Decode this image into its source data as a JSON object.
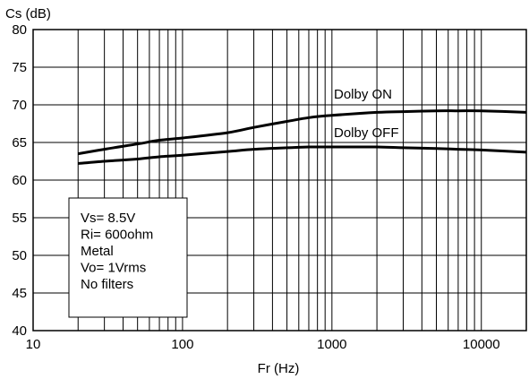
{
  "chart_data": {
    "type": "line",
    "title": "",
    "xlabel": "Fr (Hz)",
    "ylabel": "Cs (dB)",
    "xscale": "log",
    "xlim": [
      10,
      20000
    ],
    "ylim": [
      40,
      80
    ],
    "x_ticks": [
      10,
      100,
      1000,
      10000
    ],
    "x_tick_labels": [
      "10",
      "100",
      "1000",
      "10000"
    ],
    "y_ticks": [
      40,
      45,
      50,
      55,
      60,
      65,
      70,
      75,
      80
    ],
    "y_tick_labels": [
      "40",
      "45",
      "50",
      "55",
      "60",
      "65",
      "70",
      "75",
      "80"
    ],
    "grid": {
      "x_minor_log": true,
      "y_major": true
    },
    "series": [
      {
        "name": "Dolby ON",
        "x": [
          20,
          30,
          50,
          70,
          100,
          200,
          300,
          500,
          700,
          1000,
          2000,
          3000,
          5000,
          7000,
          10000,
          20000
        ],
        "y": [
          63.5,
          64.1,
          64.8,
          65.3,
          65.6,
          66.3,
          67.0,
          67.8,
          68.3,
          68.6,
          69.0,
          69.1,
          69.2,
          69.2,
          69.2,
          69.0
        ]
      },
      {
        "name": "Dolby OFF",
        "x": [
          20,
          30,
          50,
          70,
          100,
          200,
          300,
          500,
          700,
          1000,
          2000,
          3000,
          5000,
          7000,
          10000,
          20000
        ],
        "y": [
          62.2,
          62.5,
          62.8,
          63.1,
          63.3,
          63.8,
          64.1,
          64.3,
          64.4,
          64.4,
          64.4,
          64.3,
          64.2,
          64.1,
          64.0,
          63.7
        ]
      }
    ],
    "conditions_box": [
      "Vs= 8.5V",
      "Ri= 600ohm",
      "Metal",
      "Vo= 1Vrms",
      "No filters"
    ]
  },
  "colors": {
    "line": "#000000",
    "grid": "#000000",
    "background": "#ffffff"
  }
}
